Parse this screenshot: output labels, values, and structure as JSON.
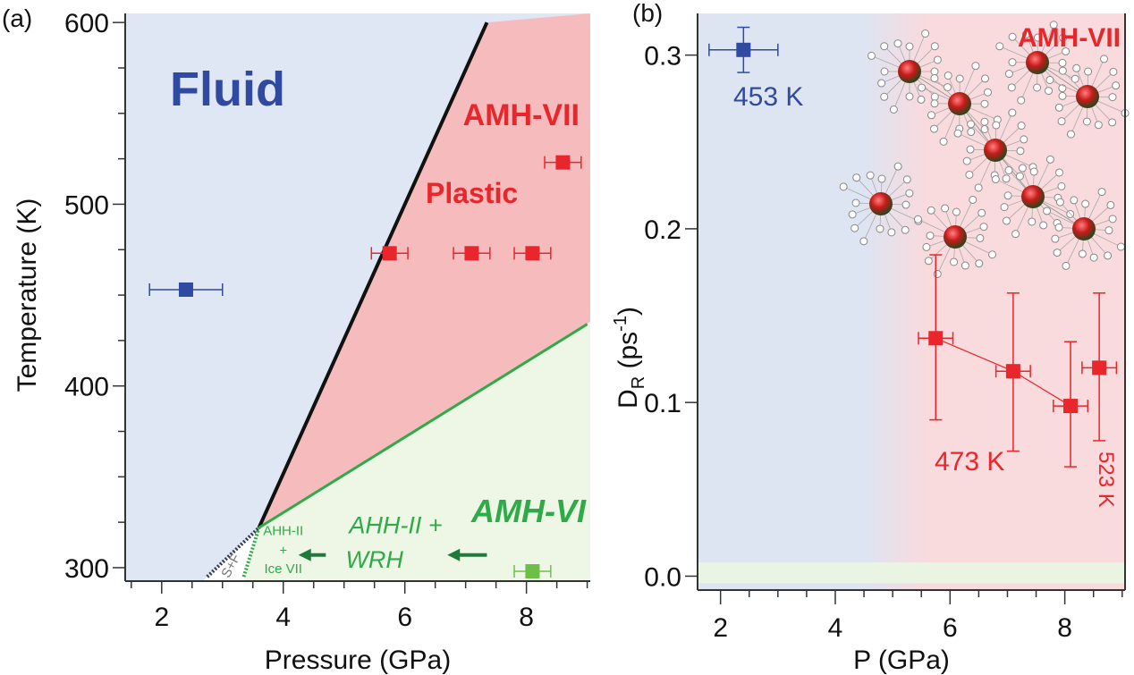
{
  "chart_data": [
    {
      "panel_label": "(a)",
      "type": "scatter",
      "xlabel": "Pressure (GPa)",
      "ylabel": "Temperature (K)",
      "xlim": [
        1.4,
        9.05
      ],
      "ylim": [
        292.6,
        605
      ],
      "xticks": [
        2,
        4,
        6,
        8
      ],
      "yticks": [
        300,
        400,
        500,
        600
      ],
      "grid": false,
      "regions": [
        {
          "label": "Fluid",
          "color": "#dfe6f4",
          "text_color": "#2f4aa0"
        },
        {
          "label": "AMH-VII",
          "sublabel": "Plastic",
          "color": "#f6bcbd",
          "text_color": "#e8262b"
        },
        {
          "label": "AMH-VI",
          "color": "#eef6e6",
          "text_color": "#2eab48"
        }
      ],
      "boundaries": [
        {
          "name": "melting",
          "style": "solid",
          "color": "#111111",
          "points": [
            [
              3.6,
              322
            ],
            [
              7.35,
              600
            ]
          ]
        },
        {
          "name": "VII-VI",
          "style": "solid",
          "color": "#2eab48",
          "points": [
            [
              3.6,
              322
            ],
            [
              9.0,
              434
            ]
          ]
        },
        {
          "name": "dotted-black",
          "style": "dotted",
          "color": "#333a55",
          "points": [
            [
              2.75,
              295
            ],
            [
              3.6,
              322
            ]
          ]
        },
        {
          "name": "dotted-green",
          "style": "dotted",
          "color": "#2eab48",
          "points": [
            [
              3.35,
              295
            ],
            [
              3.6,
              322
            ]
          ]
        }
      ],
      "annotations": [
        {
          "text": "AHH-II",
          "x": 4.0,
          "y": 318
        },
        {
          "text": "+",
          "x": 4.0,
          "y": 307
        },
        {
          "text": "Ice VII",
          "x": 4.0,
          "y": 297
        },
        {
          "text": "AHH-II +",
          "x": 5.85,
          "y": 319
        },
        {
          "text": "WRH",
          "x": 5.5,
          "y": 300
        },
        {
          "text": "S+F",
          "x": 3.2,
          "y": 300
        }
      ],
      "arrows": [
        {
          "from": [
            4.7,
            307
          ],
          "to": [
            4.25,
            307
          ]
        },
        {
          "from": [
            7.35,
            307
          ],
          "to": [
            6.7,
            307
          ]
        }
      ],
      "points": [
        {
          "x": 2.4,
          "y": 453,
          "xerr": 0.6,
          "color": "#2f4aa0"
        },
        {
          "x": 5.75,
          "y": 473,
          "xerr": 0.3,
          "color": "#e8262b"
        },
        {
          "x": 7.1,
          "y": 473,
          "xerr": 0.3,
          "color": "#e8262b"
        },
        {
          "x": 8.1,
          "y": 473,
          "xerr": 0.3,
          "color": "#e8262b"
        },
        {
          "x": 8.6,
          "y": 523,
          "xerr": 0.3,
          "color": "#e8262b"
        },
        {
          "x": 8.1,
          "y": 298,
          "xerr": 0.3,
          "color": "#6cc04a"
        }
      ]
    },
    {
      "panel_label": "(b)",
      "type": "scatter",
      "xlabel": "P (GPa)",
      "ylabel": "D",
      "ylabel_sub": "R",
      "ylabel_unit": " (ps",
      "ylabel_sup": "-1",
      "ylabel_close": ")",
      "xlim": [
        1.6,
        9.05
      ],
      "ylim": [
        -0.008,
        0.324
      ],
      "xticks": [
        2,
        4,
        6,
        8
      ],
      "yticks": [
        0.0,
        0.1,
        0.2,
        0.3
      ],
      "ytick_labels": [
        "0.0",
        "0.1",
        "0.2",
        "0.3"
      ],
      "grid": false,
      "background": {
        "left_color": "#dde4f2",
        "right_color": "#f9dadd",
        "transition": [
          4.5,
          5.6
        ],
        "bottom_band_color": "#e9f4e2",
        "bottom_band_top": 0.008
      },
      "region_label": "AMH-VII",
      "series": [
        {
          "name": "453 K",
          "color": "#2f4aa0",
          "connected": false,
          "points": [
            {
              "x": 2.4,
              "y": 0.303,
              "xerr": 0.6,
              "ylo": 0.29,
              "yhi": 0.316
            }
          ]
        },
        {
          "name": "473 K",
          "color": "#e8262b",
          "connected": true,
          "points": [
            {
              "x": 5.75,
              "y": 0.137,
              "xerr": 0.3,
              "ylo": 0.09,
              "yhi": 0.185
            },
            {
              "x": 7.1,
              "y": 0.118,
              "xerr": 0.3,
              "ylo": 0.072,
              "yhi": 0.163
            },
            {
              "x": 8.1,
              "y": 0.098,
              "xerr": 0.3,
              "ylo": 0.063,
              "yhi": 0.135
            }
          ]
        },
        {
          "name": "523 K",
          "color": "#e8262b",
          "connected": false,
          "points": [
            {
              "x": 8.6,
              "y": 0.12,
              "xerr": 0.3,
              "ylo": 0.078,
              "yhi": 0.163
            }
          ]
        }
      ]
    }
  ]
}
